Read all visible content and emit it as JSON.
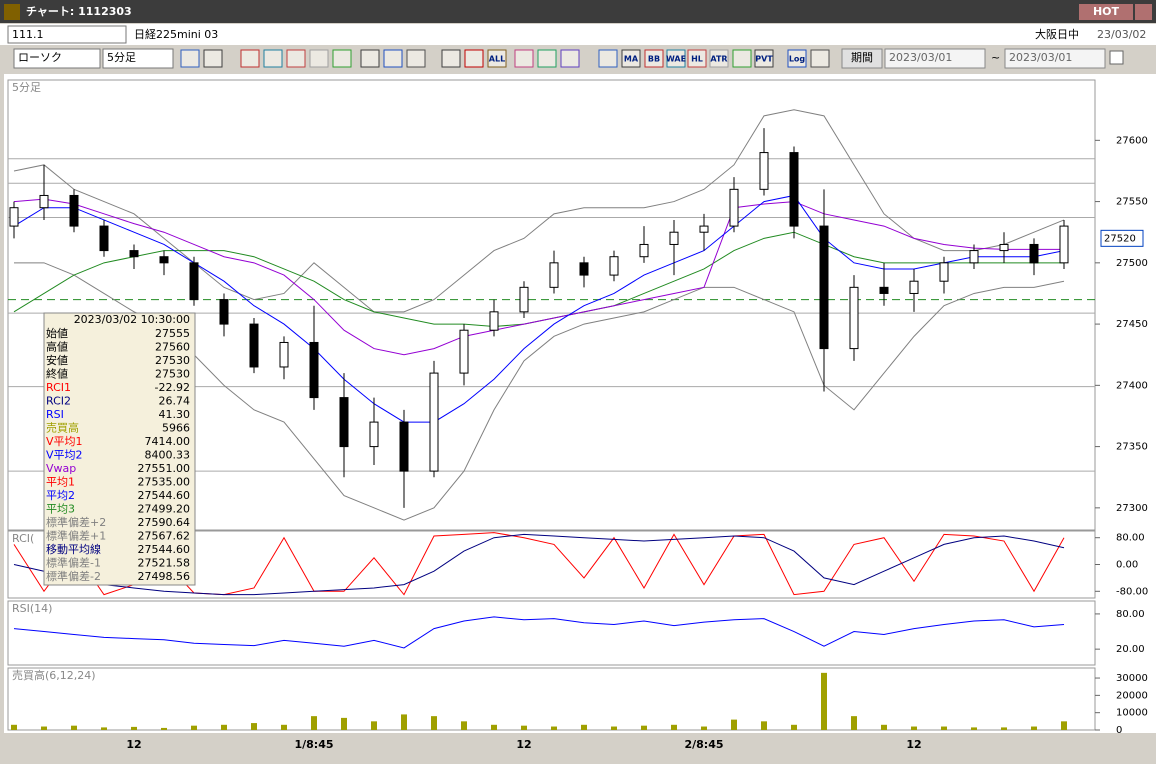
{
  "window": {
    "title": "チャート: 1112303",
    "hot": "HOT"
  },
  "header": {
    "code": "111.1",
    "name": "日経225mini 03",
    "market": "大阪日中",
    "date": "23/03/02"
  },
  "toolbar": {
    "chart_type": "ローソク",
    "interval": "5分足",
    "icon_labels": [
      "ALL",
      "MA",
      "BB",
      "WAE",
      "HL",
      "ATR",
      "PVT",
      "Log"
    ],
    "period": "期間",
    "from": "2023/03/01",
    "tilde": "~",
    "to": "2023/03/01"
  },
  "chart_data": [
    {
      "type": "candlestick",
      "panel_label": "5分足",
      "up_color": "#ffffff",
      "down_color": "#000000",
      "categories": [
        null,
        null,
        null,
        null,
        "12",
        null,
        null,
        null,
        null,
        null,
        "1/8:45",
        null,
        null,
        null,
        null,
        null,
        null,
        "12",
        null,
        null,
        null,
        null,
        null,
        "2/8:45",
        null,
        null,
        null,
        null,
        null,
        null,
        "12",
        null,
        null,
        null,
        null,
        null
      ],
      "open": [
        27530,
        27545,
        27555,
        27530,
        27510,
        27505,
        27500,
        27470,
        27450,
        27415,
        27435,
        27390,
        27350,
        27370,
        27330,
        27410,
        27445,
        27460,
        27480,
        27500,
        27490,
        27505,
        27515,
        27525,
        27530,
        27560,
        27590,
        27530,
        27430,
        27480,
        27475,
        27485,
        27500,
        27510,
        27515,
        27500
      ],
      "high": [
        27550,
        27580,
        27560,
        27535,
        27515,
        27510,
        27505,
        27475,
        27455,
        27440,
        27465,
        27410,
        27390,
        27380,
        27420,
        27450,
        27470,
        27485,
        27510,
        27505,
        27510,
        27530,
        27535,
        27540,
        27570,
        27610,
        27595,
        27560,
        27490,
        27500,
        27495,
        27505,
        27515,
        27525,
        27520,
        27535
      ],
      "low": [
        27520,
        27535,
        27525,
        27505,
        27495,
        27490,
        27465,
        27440,
        27410,
        27405,
        27380,
        27325,
        27335,
        27300,
        27325,
        27400,
        27440,
        27455,
        27475,
        27480,
        27485,
        27500,
        27490,
        27510,
        27525,
        27555,
        27520,
        27395,
        27420,
        27465,
        27460,
        27475,
        27495,
        27500,
        27490,
        27495
      ],
      "close": [
        27545,
        27555,
        27530,
        27510,
        27505,
        27500,
        27470,
        27450,
        27415,
        27435,
        27390,
        27350,
        27370,
        27330,
        27410,
        27445,
        27460,
        27480,
        27500,
        27490,
        27505,
        27515,
        27525,
        27530,
        27560,
        27590,
        27530,
        27430,
        27480,
        27475,
        27485,
        27500,
        27510,
        27515,
        27500,
        27530
      ],
      "overlays": [
        {
          "color": "#808080",
          "values": [
            27575,
            27580,
            27560,
            27550,
            27540,
            27520,
            27500,
            27480,
            27470,
            27475,
            27500,
            27480,
            27460,
            27460,
            27470,
            27490,
            27510,
            27520,
            27540,
            27545,
            27545,
            27545,
            27550,
            27560,
            27580,
            27620,
            27625,
            27620,
            27580,
            27540,
            27520,
            27510,
            27510,
            27515,
            27525,
            27535
          ]
        },
        {
          "color": "#808080",
          "values": [
            27500,
            27500,
            27490,
            27475,
            27460,
            27450,
            27425,
            27400,
            27380,
            27370,
            27340,
            27310,
            27300,
            27290,
            27300,
            27330,
            27380,
            27420,
            27440,
            27450,
            27455,
            27460,
            27470,
            27480,
            27480,
            27470,
            27460,
            27400,
            27380,
            27410,
            27440,
            27465,
            27475,
            27480,
            27480,
            27485
          ]
        },
        {
          "color": "#228b22",
          "values": [
            27460,
            27475,
            27490,
            27500,
            27505,
            27510,
            27510,
            27510,
            27505,
            27495,
            27485,
            27470,
            27460,
            27455,
            27450,
            27450,
            27448,
            27450,
            27455,
            27460,
            27465,
            27475,
            27485,
            27495,
            27510,
            27520,
            27525,
            27515,
            27505,
            27500,
            27500,
            27500,
            27500,
            27500,
            27500,
            27500
          ]
        },
        {
          "color": "#9400d3",
          "values": [
            27550,
            27552,
            27548,
            27540,
            27532,
            27525,
            27515,
            27505,
            27500,
            27490,
            27470,
            27445,
            27430,
            27425,
            27430,
            27440,
            27445,
            27450,
            27455,
            27460,
            27465,
            27470,
            27475,
            27480,
            27545,
            27548,
            27550,
            27540,
            27535,
            27530,
            27520,
            27515,
            27512,
            27511,
            27511,
            27511
          ]
        },
        {
          "color": "#0000ff",
          "values": [
            27530,
            27545,
            27545,
            27535,
            27525,
            27515,
            27500,
            27485,
            27465,
            27450,
            27430,
            27405,
            27385,
            27370,
            27370,
            27385,
            27405,
            27430,
            27450,
            27465,
            27475,
            27490,
            27500,
            27510,
            27530,
            27550,
            27555,
            27520,
            27500,
            27495,
            27495,
            27500,
            27505,
            27505,
            27505,
            27510
          ]
        }
      ],
      "hlines": [
        27585,
        27565,
        27537,
        27459,
        27399,
        27330
      ],
      "dashed_line": {
        "value": 27470,
        "color": "#228b22"
      },
      "last_price": 27520,
      "ylim": [
        27286,
        27637
      ],
      "yticks": [
        27300,
        27350,
        27400,
        27450,
        27500,
        27550,
        27600
      ],
      "info_box": {
        "datetime": "2023/03/02  10:30:00",
        "rows": [
          {
            "label": "始値",
            "value": "27555",
            "color": "#000000"
          },
          {
            "label": "高値",
            "value": "27560",
            "color": "#000000"
          },
          {
            "label": "安値",
            "value": "27530",
            "color": "#000000"
          },
          {
            "label": "終値",
            "value": "27530",
            "color": "#000000"
          },
          {
            "label": "RCI1",
            "value": "-22.92",
            "color": "#ff0000"
          },
          {
            "label": "RCI2",
            "value": "26.74",
            "color": "#000080"
          },
          {
            "label": "RSI",
            "value": "41.30",
            "color": "#0000ff"
          },
          {
            "label": "売買高",
            "value": "5966",
            "color": "#a0a000"
          },
          {
            "label": "V平均1",
            "value": "7414.00",
            "color": "#ff0000"
          },
          {
            "label": "V平均2",
            "value": "8400.33",
            "color": "#0000ff"
          },
          {
            "label": "Vwap",
            "value": "27551.00",
            "color": "#9400d3"
          },
          {
            "label": "平均1",
            "value": "27535.00",
            "color": "#ff0000"
          },
          {
            "label": "平均2",
            "value": "27544.60",
            "color": "#0000ff"
          },
          {
            "label": "平均3",
            "value": "27499.20",
            "color": "#228b22"
          },
          {
            "label": "標準偏差+2",
            "value": "27590.64",
            "color": "#808080"
          },
          {
            "label": "標準偏差+1",
            "value": "27567.62",
            "color": "#808080"
          },
          {
            "label": "移動平均線",
            "value": "27544.60",
            "color": "#000080"
          },
          {
            "label": "標準偏差-1",
            "value": "27521.58",
            "color": "#808080"
          },
          {
            "label": "標準偏差-2",
            "value": "27498.56",
            "color": "#808080"
          }
        ]
      }
    },
    {
      "type": "line",
      "panel_label": "RCI(",
      "ylim": [
        -100,
        100
      ],
      "yticks": [
        {
          "value": 80,
          "label": "80.00"
        },
        {
          "value": 0,
          "label": "0.00"
        },
        {
          "value": -80,
          "label": "-80.00"
        }
      ],
      "series": [
        {
          "color": "#ff0000",
          "values": [
            60,
            -80,
            40,
            -90,
            -60,
            10,
            -85,
            -90,
            -70,
            80,
            -80,
            -80,
            20,
            -90,
            85,
            90,
            95,
            80,
            60,
            -40,
            80,
            -70,
            90,
            -60,
            85,
            90,
            -90,
            -80,
            60,
            80,
            -50,
            90,
            85,
            70,
            -80,
            80
          ]
        },
        {
          "color": "#000080",
          "values": [
            0,
            -20,
            -40,
            -60,
            -70,
            -80,
            -85,
            -90,
            -90,
            -85,
            -80,
            -75,
            -70,
            -60,
            -20,
            40,
            80,
            90,
            85,
            80,
            75,
            70,
            75,
            80,
            85,
            80,
            40,
            -40,
            -60,
            -20,
            20,
            60,
            80,
            85,
            70,
            50
          ]
        }
      ]
    },
    {
      "type": "line",
      "panel_label": "RSI(14)",
      "ylim": [
        -7,
        102
      ],
      "yticks": [
        {
          "value": 80,
          "label": "80.00"
        },
        {
          "value": 20,
          "label": "20.00"
        }
      ],
      "series": [
        {
          "color": "#0000ff",
          "values": [
            55,
            50,
            45,
            40,
            38,
            36,
            30,
            28,
            26,
            35,
            30,
            25,
            35,
            22,
            55,
            68,
            75,
            70,
            72,
            65,
            62,
            68,
            60,
            66,
            70,
            72,
            50,
            25,
            50,
            45,
            55,
            62,
            68,
            70,
            58,
            62
          ]
        }
      ]
    },
    {
      "type": "bar",
      "panel_label": "売買高(6,12,24)",
      "color": "#a0a000",
      "ylim": [
        0,
        35800
      ],
      "yticks": [
        0,
        10000,
        20000,
        30000
      ],
      "values": [
        3000,
        2000,
        2500,
        1500,
        1800,
        1200,
        2500,
        3000,
        4000,
        3000,
        8000,
        7000,
        5000,
        9000,
        8000,
        5000,
        3000,
        2500,
        2000,
        3000,
        2000,
        2500,
        3000,
        2000,
        6000,
        5000,
        3000,
        33000,
        8000,
        3000,
        2000,
        2000,
        1500,
        1500,
        2000,
        5000
      ]
    }
  ]
}
